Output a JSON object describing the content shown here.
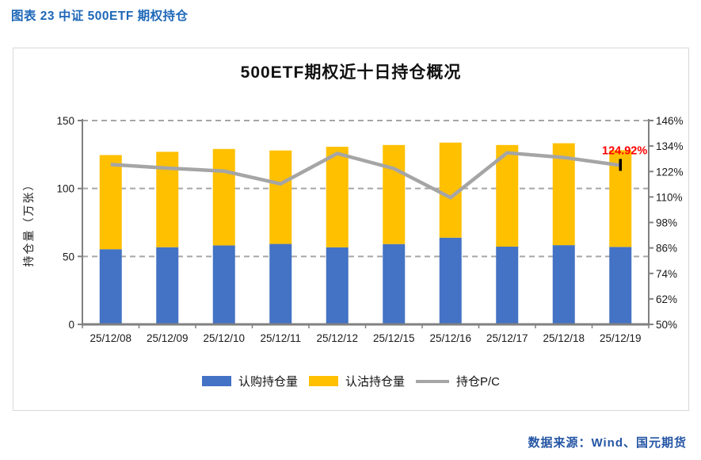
{
  "page": {
    "header": "图表 23 中证 500ETF 期权持仓",
    "footer": "数据来源：Wind、国元期货"
  },
  "colors": {
    "header_blue": "#1e68b8",
    "footer_blue": "#2455a4",
    "call_bar": "#4472C4",
    "put_bar": "#FFC000",
    "pc_line": "#A5A5A5",
    "annotation_red": "#FF0000",
    "grid_gray": "#A6A6A6",
    "axis_gray": "#808080",
    "panel_border": "#D8D8D8"
  },
  "chart_data": {
    "type": "bar",
    "subtype": "stacked-bars-with-right-axis-line",
    "title": "500ETF期权近十日持仓概况",
    "categories": [
      "25/12/08",
      "25/12/09",
      "25/12/10",
      "25/12/11",
      "25/12/12",
      "25/12/15",
      "25/12/16",
      "25/12/17",
      "25/12/18",
      "25/12/19"
    ],
    "series": [
      {
        "name": "认购持仓量",
        "type": "bar",
        "stack": "oi",
        "axis": "left",
        "color": "#4472C4",
        "values": [
          55.3,
          56.8,
          58.1,
          59.2,
          56.7,
          59.1,
          63.8,
          57.2,
          58.3,
          57.0
        ]
      },
      {
        "name": "认沽持仓量",
        "type": "bar",
        "stack": "oi",
        "axis": "left",
        "color": "#FFC000",
        "values": [
          69.3,
          70.2,
          71.0,
          68.8,
          74.0,
          72.9,
          70.0,
          74.8,
          75.0,
          71.2
        ]
      },
      {
        "name": "持仓P/C",
        "type": "line",
        "axis": "right",
        "color": "#A5A5A5",
        "values": [
          125.3,
          123.6,
          122.2,
          116.2,
          130.5,
          123.4,
          109.7,
          130.8,
          128.6,
          124.92
        ]
      }
    ],
    "ylabel_left": "持仓量（万张）",
    "axis_left": {
      "min": 0,
      "max": 150,
      "ticks": [
        "0",
        "50",
        "100",
        "150"
      ]
    },
    "axis_right": {
      "min": 50,
      "max": 146,
      "ticks": [
        "50%",
        "62%",
        "74%",
        "86%",
        "98%",
        "110%",
        "122%",
        "134%",
        "146%"
      ]
    },
    "grid": {
      "horizontal": "dashed",
      "vertical": "off"
    },
    "legend_position": "bottom",
    "annotation": {
      "text": "124.92%",
      "color": "#FF0000",
      "target": "last-line-point"
    }
  }
}
